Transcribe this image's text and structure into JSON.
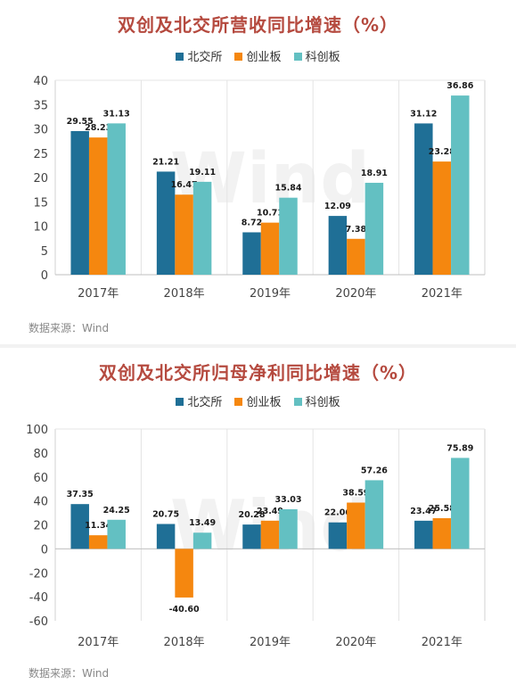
{
  "chart_data": [
    {
      "type": "bar",
      "title": "双创及北交所营收同比增速（%）",
      "categories": [
        "2017年",
        "2018年",
        "2019年",
        "2020年",
        "2021年"
      ],
      "series": [
        {
          "name": "北交所",
          "color": "#1f6f96",
          "values": [
            29.55,
            21.21,
            8.72,
            12.09,
            31.12
          ]
        },
        {
          "name": "创业板",
          "color": "#f5870f",
          "values": [
            28.23,
            16.47,
            10.71,
            7.38,
            23.28
          ]
        },
        {
          "name": "科创板",
          "color": "#63c0c2",
          "values": [
            31.13,
            19.11,
            15.84,
            18.91,
            36.86
          ]
        }
      ],
      "ylim": [
        0,
        40
      ],
      "yticks": [
        0,
        5,
        10,
        15,
        20,
        25,
        30,
        35,
        40
      ],
      "legend": "top",
      "grid": false,
      "source": "数据来源：Wind",
      "watermark": "Wind"
    },
    {
      "type": "bar",
      "title": "双创及北交所归母净利同比增速（%）",
      "categories": [
        "2017年",
        "2018年",
        "2019年",
        "2020年",
        "2021年"
      ],
      "series": [
        {
          "name": "北交所",
          "color": "#1f6f96",
          "values": [
            37.35,
            20.75,
            20.28,
            22.06,
            23.47
          ]
        },
        {
          "name": "创业板",
          "color": "#f5870f",
          "values": [
            11.34,
            -40.6,
            23.49,
            38.59,
            25.58
          ]
        },
        {
          "name": "科创板",
          "color": "#63c0c2",
          "values": [
            24.25,
            13.49,
            33.03,
            57.26,
            75.89
          ]
        }
      ],
      "ylim": [
        -60,
        100
      ],
      "yticks": [
        -60,
        -40,
        -20,
        0,
        20,
        40,
        60,
        80,
        100
      ],
      "legend": "top",
      "grid": false,
      "source": "数据来源：Wind",
      "watermark": "Wind"
    }
  ]
}
